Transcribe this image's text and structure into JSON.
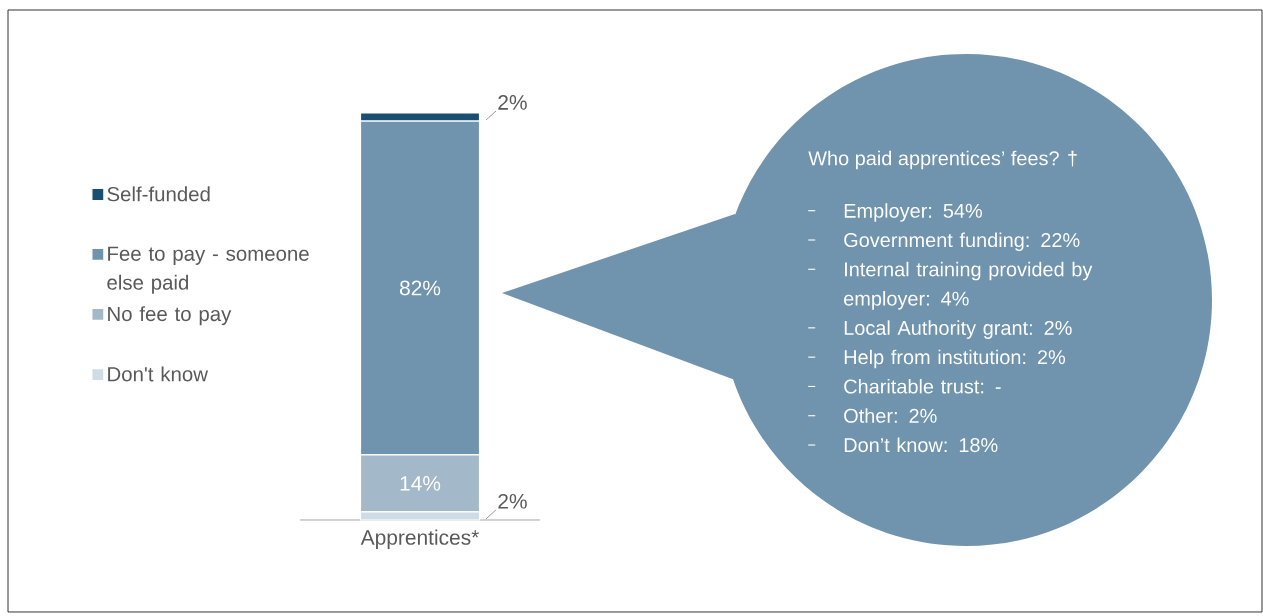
{
  "chart_data": {
    "type": "bar",
    "stacked": true,
    "categories": [
      "Apprentices*"
    ],
    "series": [
      {
        "name": "Don't know",
        "color": "#cfdce5",
        "values": [
          2
        ],
        "value_labels": [
          "2%"
        ]
      },
      {
        "name": "No fee to pay",
        "color": "#a3b9c9",
        "values": [
          14
        ],
        "value_labels": [
          "14%"
        ]
      },
      {
        "name": "Fee to pay - someone else paid",
        "color": "#7094ad",
        "values": [
          82
        ],
        "value_labels": [
          "82%"
        ]
      },
      {
        "name": "Self-funded",
        "color": "#1b4f72",
        "values": [
          2
        ],
        "value_labels": [
          "2%"
        ]
      }
    ],
    "legend": "left",
    "annotations": [
      "Who paid apprentices’ fees? †",
      "Employer: 54%",
      "Government funding: 22%",
      "Internal training provided by employer: 4%",
      "Local Authority grant: 2%",
      "Help from institution: 2%",
      "Charitable trust: -",
      "Other: 2%",
      "Don’t know: 18%"
    ]
  }
}
